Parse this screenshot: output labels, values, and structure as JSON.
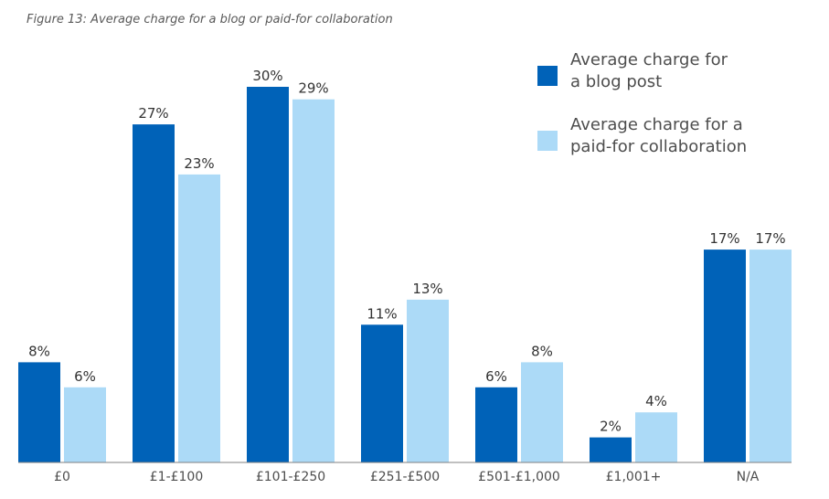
{
  "figure_title": "Figure 13: Average charge for a blog or paid-for collaboration",
  "colors": {
    "series1": "#0062b8",
    "series2": "#acdaf7",
    "axis": "#808080"
  },
  "chart_data": {
    "type": "bar",
    "title": "Figure 13: Average charge for a blog or paid-for collaboration",
    "xlabel": "",
    "ylabel": "",
    "ylim": [
      0,
      30
    ],
    "categories": [
      "£0",
      "£1-£100",
      "£101-£250",
      "£251-£500",
      "£501-£1,000",
      "£1,001+",
      "N/A"
    ],
    "series": [
      {
        "name": "Average charge for a blog post",
        "legend_lines": [
          "Average charge for",
          "a blog post"
        ],
        "values": [
          8,
          27,
          30,
          11,
          6,
          2,
          17
        ],
        "labels": [
          "8%",
          "27%",
          "30%",
          "11%",
          "6%",
          "2%",
          "17%"
        ]
      },
      {
        "name": "Average charge for a paid-for collaboration",
        "legend_lines": [
          "Average charge for a",
          "paid-for collaboration"
        ],
        "values": [
          6,
          23,
          29,
          13,
          8,
          4,
          17
        ],
        "labels": [
          "6%",
          "23%",
          "29%",
          "13%",
          "8%",
          "4%",
          "17%"
        ]
      }
    ],
    "grid": false,
    "legend_position": "top-right"
  }
}
